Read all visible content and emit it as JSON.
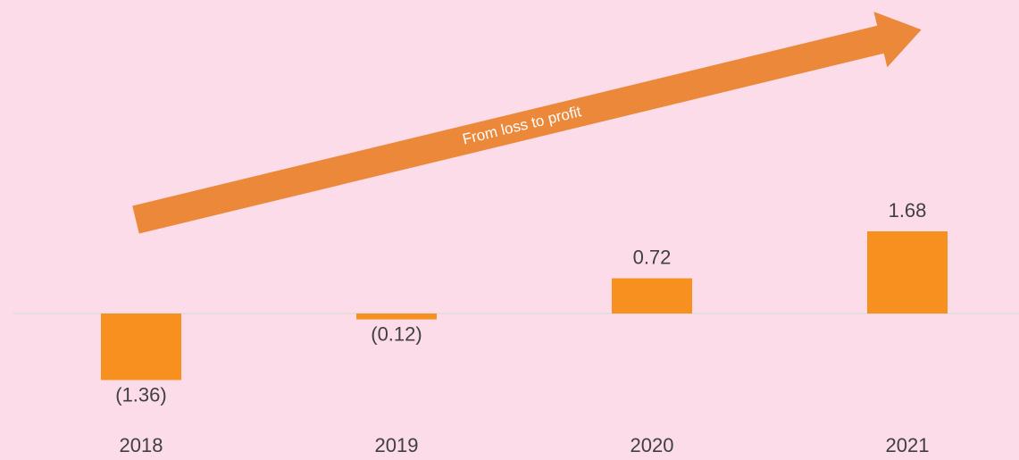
{
  "chart_data": {
    "type": "bar",
    "categories": [
      "2018",
      "2019",
      "2020",
      "2021"
    ],
    "values": [
      -1.36,
      -0.12,
      0.72,
      1.68
    ],
    "value_labels": [
      "(1.36)",
      "(0.12)",
      "0.72",
      "1.68"
    ],
    "color": "#f7901e",
    "annotation": "From loss to profit"
  }
}
